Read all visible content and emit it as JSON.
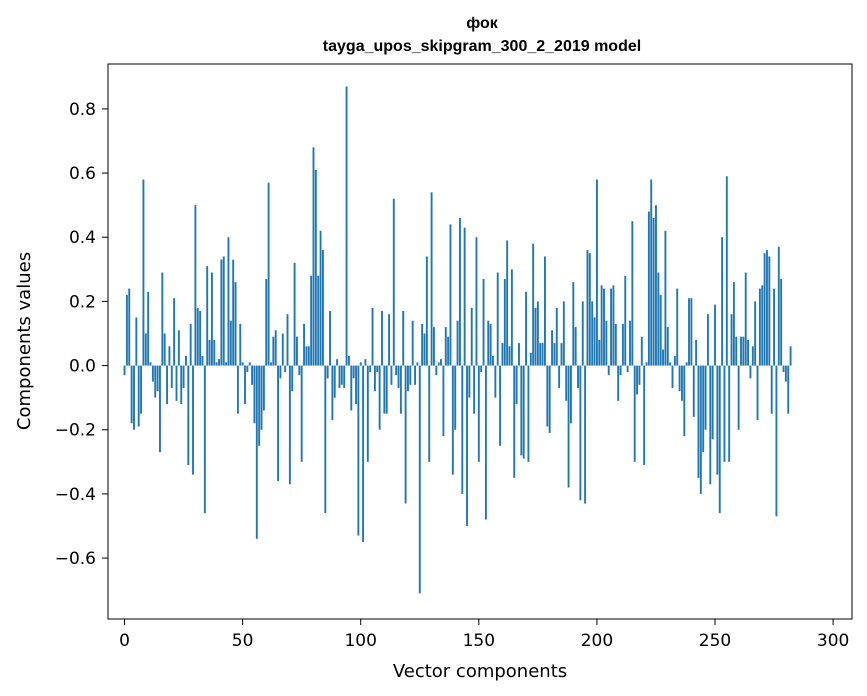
{
  "chart_data": {
    "type": "bar",
    "title": "фок",
    "subtitle": "tayga_upos_skipgram_300_2_2019 model",
    "xlabel": "Vector components",
    "ylabel": "Components values",
    "xlim": [
      -7,
      308
    ],
    "ylim": [
      -0.79,
      0.94
    ],
    "xticks": [
      0,
      50,
      100,
      150,
      200,
      250,
      300
    ],
    "yticks": [
      -0.6,
      -0.4,
      -0.2,
      0.0,
      0.2,
      0.4,
      0.6,
      0.8
    ],
    "ytick_labels": [
      "−0.6",
      "−0.4",
      "−0.2",
      "0.0",
      "0.2",
      "0.4",
      "0.6",
      "0.8"
    ],
    "xtick_labels": [
      "0",
      "50",
      "100",
      "150",
      "200",
      "250",
      "300"
    ],
    "color": "#1f77b4",
    "x_start": 0,
    "values": [
      -0.03,
      0.22,
      0.24,
      -0.18,
      -0.2,
      0.15,
      -0.19,
      -0.15,
      0.58,
      0.1,
      0.23,
      0.01,
      -0.05,
      -0.1,
      -0.08,
      -0.27,
      0.29,
      0.1,
      -0.12,
      0.06,
      -0.07,
      0.21,
      -0.11,
      0.11,
      -0.12,
      -0.07,
      0.03,
      -0.31,
      0.13,
      -0.34,
      0.5,
      0.18,
      0.17,
      0.03,
      -0.46,
      0.31,
      0.08,
      0.29,
      0.08,
      0.01,
      0.02,
      0.33,
      0.34,
      0.01,
      0.4,
      0.14,
      0.33,
      0.26,
      -0.15,
      0.13,
      0.01,
      -0.12,
      -0.02,
      0.01,
      -0.06,
      -0.18,
      -0.54,
      -0.25,
      -0.2,
      -0.14,
      0.27,
      0.57,
      0.01,
      0.09,
      0.11,
      -0.36,
      -0.04,
      0.1,
      -0.02,
      0.16,
      -0.37,
      -0.08,
      0.32,
      0.09,
      -0.03,
      -0.3,
      0.13,
      0.06,
      0.06,
      0.28,
      0.68,
      0.61,
      0.28,
      0.42,
      0.36,
      -0.46,
      -0.04,
      0.17,
      -0.17,
      -0.1,
      0.02,
      -0.07,
      -0.06,
      -0.07,
      0.87,
      0.03,
      -0.14,
      -0.04,
      -0.12,
      -0.53,
      0.01,
      -0.55,
      0.02,
      -0.3,
      -0.02,
      0.18,
      -0.08,
      -0.02,
      -0.2,
      0.17,
      -0.15,
      -0.15,
      0.16,
      -0.06,
      0.52,
      -0.03,
      -0.07,
      -0.15,
      0.17,
      -0.43,
      -0.08,
      -0.06,
      0.14,
      -0.06,
      0.01,
      -0.71,
      0.13,
      0.1,
      0.34,
      -0.3,
      0.54,
      0.12,
      -0.03,
      0.01,
      0.02,
      -0.22,
      0.12,
      0.09,
      0.44,
      -0.34,
      -0.2,
      0.14,
      0.46,
      -0.4,
      0.43,
      -0.5,
      -0.1,
      0.18,
      -0.15,
      0.4,
      -0.3,
      -0.02,
      0.27,
      -0.48,
      0.14,
      0.13,
      0.03,
      -0.1,
      0.29,
      -0.25,
      0.07,
      0.27,
      0.39,
      0.06,
      0.3,
      -0.35,
      -0.12,
      0.07,
      -0.28,
      -0.29,
      0.23,
      -0.3,
      0.04,
      0.38,
      0.18,
      0.2,
      0.07,
      0.07,
      0.34,
      -0.19,
      -0.21,
      0.11,
      0.07,
      0.18,
      -0.07,
      0.07,
      0.2,
      -0.11,
      -0.38,
      -0.18,
      0.26,
      0.12,
      -0.07,
      -0.42,
      0.2,
      -0.43,
      0.36,
      0.35,
      0.2,
      0.15,
      0.58,
      0.08,
      0.25,
      0.24,
      0.14,
      -0.03,
      0.24,
      0.25,
      0.13,
      -0.11,
      -0.03,
      0.13,
      0.28,
      -0.02,
      0.14,
      0.45,
      -0.3,
      -0.09,
      -0.06,
      0.09,
      -0.31,
      0.01,
      0.48,
      0.58,
      0.46,
      0.5,
      0.29,
      0.22,
      0.05,
      0.42,
      0.12,
      0.01,
      -0.07,
      0.03,
      0.24,
      -0.08,
      -0.11,
      -0.22,
      0.01,
      0.21,
      0.21,
      -0.16,
      0.08,
      -0.35,
      -0.4,
      -0.27,
      -0.2,
      0.16,
      -0.37,
      -0.23,
      0.19,
      -0.34,
      -0.46,
      0.4,
      -0.3,
      0.59,
      -0.3,
      0.16,
      0.26,
      0.09,
      -0.2,
      0.09,
      0.09,
      0.29,
      0.08,
      -0.04,
      0.06,
      0.2,
      -0.17,
      0.24,
      0.25,
      0.35,
      0.36,
      0.34,
      -0.15,
      0.24,
      -0.47,
      0.37,
      0.27,
      -0.02,
      -0.05,
      -0.15,
      0.06
    ]
  }
}
